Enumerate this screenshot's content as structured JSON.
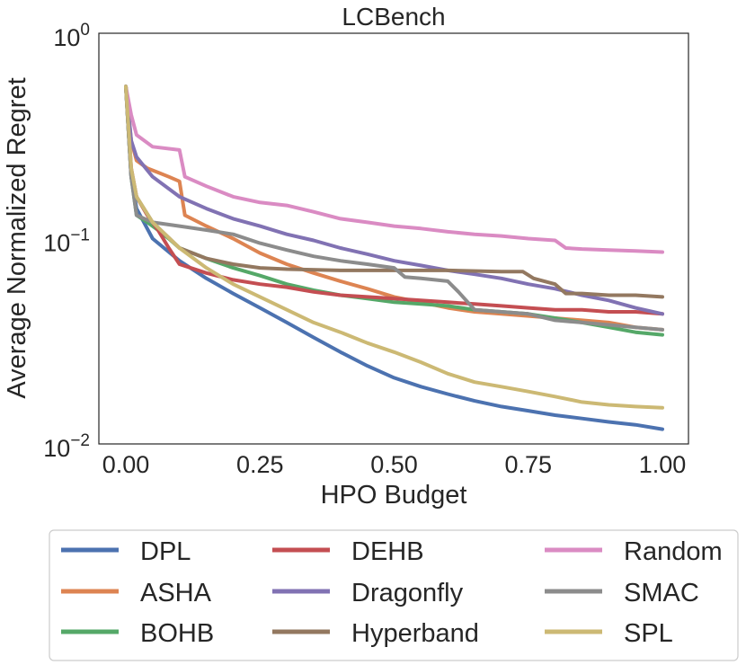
{
  "chart_data": {
    "type": "line",
    "title": "LCBench",
    "xlabel": "HPO Budget",
    "ylabel": "Average Normalized Regret",
    "xlim": [
      0,
      1
    ],
    "ylim": [
      0.01,
      1
    ],
    "yscale": "log",
    "grid": false,
    "legend_position": "below",
    "x_ticks": [
      {
        "value": 0,
        "label": "0.00"
      },
      {
        "value": 0.25,
        "label": "0.25"
      },
      {
        "value": 0.5,
        "label": "0.50"
      },
      {
        "value": 0.75,
        "label": "0.75"
      },
      {
        "value": 1,
        "label": "1.00"
      }
    ],
    "y_ticks": [
      {
        "value": 1,
        "base": "10",
        "exp": "0"
      },
      {
        "value": 0.1,
        "base": "10",
        "exp": "−1"
      },
      {
        "value": 0.01,
        "base": "10",
        "exp": "−2"
      }
    ],
    "series": [
      {
        "name": "DPL",
        "color": "#4c72b0",
        "x": [
          0,
          0.01,
          0.02,
          0.05,
          0.1,
          0.15,
          0.2,
          0.25,
          0.3,
          0.35,
          0.4,
          0.45,
          0.5,
          0.55,
          0.6,
          0.65,
          0.7,
          0.75,
          0.8,
          0.85,
          0.9,
          0.95,
          1.0
        ],
        "values": [
          0.55,
          0.2,
          0.14,
          0.1,
          0.078,
          0.064,
          0.054,
          0.046,
          0.039,
          0.033,
          0.028,
          0.024,
          0.021,
          0.019,
          0.0175,
          0.0162,
          0.0152,
          0.0145,
          0.0138,
          0.0133,
          0.0128,
          0.0124,
          0.0118
        ]
      },
      {
        "name": "ASHA",
        "color": "#dd8452",
        "x": [
          0,
          0.01,
          0.02,
          0.04,
          0.06,
          0.08,
          0.1,
          0.11,
          0.15,
          0.2,
          0.25,
          0.3,
          0.35,
          0.4,
          0.45,
          0.5,
          0.55,
          0.6,
          0.65,
          0.7,
          0.75,
          0.8,
          0.85,
          0.9,
          0.95,
          1.0
        ],
        "values": [
          0.55,
          0.3,
          0.24,
          0.22,
          0.21,
          0.2,
          0.19,
          0.13,
          0.115,
          0.1,
          0.085,
          0.075,
          0.068,
          0.062,
          0.057,
          0.052,
          0.049,
          0.046,
          0.044,
          0.043,
          0.042,
          0.041,
          0.04,
          0.039,
          0.037,
          0.036
        ]
      },
      {
        "name": "BOHB",
        "color": "#55a868",
        "x": [
          0,
          0.01,
          0.02,
          0.04,
          0.06,
          0.08,
          0.1,
          0.15,
          0.2,
          0.25,
          0.3,
          0.35,
          0.4,
          0.45,
          0.5,
          0.55,
          0.6,
          0.65,
          0.7,
          0.75,
          0.8,
          0.85,
          0.9,
          0.95,
          1.0
        ],
        "values": [
          0.55,
          0.2,
          0.13,
          0.12,
          0.11,
          0.1,
          0.09,
          0.08,
          0.072,
          0.066,
          0.06,
          0.056,
          0.053,
          0.051,
          0.049,
          0.048,
          0.047,
          0.045,
          0.044,
          0.043,
          0.041,
          0.039,
          0.037,
          0.035,
          0.034
        ]
      },
      {
        "name": "DEHB",
        "color": "#c44e52",
        "x": [
          0,
          0.01,
          0.02,
          0.04,
          0.06,
          0.08,
          0.1,
          0.15,
          0.2,
          0.25,
          0.3,
          0.35,
          0.4,
          0.45,
          0.5,
          0.55,
          0.6,
          0.65,
          0.7,
          0.75,
          0.8,
          0.85,
          0.9,
          0.95,
          1.0
        ],
        "values": [
          0.55,
          0.22,
          0.16,
          0.13,
          0.11,
          0.09,
          0.075,
          0.068,
          0.063,
          0.06,
          0.058,
          0.055,
          0.053,
          0.052,
          0.051,
          0.05,
          0.049,
          0.048,
          0.047,
          0.046,
          0.045,
          0.045,
          0.044,
          0.044,
          0.043
        ]
      },
      {
        "name": "Dragonfly",
        "color": "#8172b3",
        "x": [
          0,
          0.01,
          0.02,
          0.05,
          0.1,
          0.15,
          0.2,
          0.25,
          0.3,
          0.35,
          0.4,
          0.45,
          0.5,
          0.55,
          0.6,
          0.65,
          0.7,
          0.75,
          0.8,
          0.85,
          0.9,
          0.95,
          1.0
        ],
        "values": [
          0.55,
          0.3,
          0.25,
          0.2,
          0.16,
          0.14,
          0.125,
          0.115,
          0.105,
          0.098,
          0.09,
          0.084,
          0.078,
          0.074,
          0.07,
          0.067,
          0.064,
          0.06,
          0.057,
          0.053,
          0.05,
          0.046,
          0.043
        ]
      },
      {
        "name": "Hyperband",
        "color": "#937860",
        "x": [
          0,
          0.01,
          0.02,
          0.05,
          0.1,
          0.15,
          0.2,
          0.25,
          0.3,
          0.4,
          0.5,
          0.6,
          0.7,
          0.74,
          0.76,
          0.8,
          0.82,
          0.85,
          0.9,
          0.95,
          1.0
        ],
        "values": [
          0.55,
          0.2,
          0.16,
          0.12,
          0.09,
          0.08,
          0.075,
          0.072,
          0.071,
          0.07,
          0.07,
          0.07,
          0.069,
          0.069,
          0.064,
          0.06,
          0.054,
          0.054,
          0.053,
          0.053,
          0.052
        ]
      },
      {
        "name": "Random",
        "color": "#da8bc3",
        "x": [
          0,
          0.01,
          0.02,
          0.05,
          0.1,
          0.11,
          0.15,
          0.2,
          0.25,
          0.3,
          0.35,
          0.4,
          0.45,
          0.5,
          0.55,
          0.6,
          0.65,
          0.7,
          0.75,
          0.8,
          0.82,
          0.85,
          0.9,
          0.95,
          1.0
        ],
        "values": [
          0.55,
          0.4,
          0.32,
          0.28,
          0.27,
          0.2,
          0.18,
          0.16,
          0.15,
          0.145,
          0.135,
          0.125,
          0.12,
          0.115,
          0.112,
          0.108,
          0.105,
          0.103,
          0.1,
          0.098,
          0.09,
          0.089,
          0.088,
          0.087,
          0.086
        ]
      },
      {
        "name": "SMAC",
        "color": "#8c8c8c",
        "x": [
          0,
          0.01,
          0.02,
          0.05,
          0.1,
          0.15,
          0.2,
          0.25,
          0.3,
          0.35,
          0.4,
          0.45,
          0.5,
          0.52,
          0.55,
          0.6,
          0.62,
          0.65,
          0.7,
          0.75,
          0.8,
          0.85,
          0.9,
          0.95,
          1.0
        ],
        "values": [
          0.55,
          0.2,
          0.13,
          0.12,
          0.115,
          0.11,
          0.105,
          0.095,
          0.088,
          0.082,
          0.078,
          0.075,
          0.072,
          0.065,
          0.064,
          0.062,
          0.055,
          0.045,
          0.044,
          0.043,
          0.04,
          0.039,
          0.038,
          0.037,
          0.036
        ]
      },
      {
        "name": "SPL",
        "color": "#ccb974",
        "x": [
          0,
          0.01,
          0.02,
          0.05,
          0.1,
          0.15,
          0.2,
          0.25,
          0.3,
          0.35,
          0.4,
          0.45,
          0.5,
          0.55,
          0.6,
          0.65,
          0.7,
          0.75,
          0.8,
          0.85,
          0.9,
          0.95,
          1.0
        ],
        "values": [
          0.55,
          0.22,
          0.16,
          0.12,
          0.09,
          0.072,
          0.06,
          0.052,
          0.045,
          0.039,
          0.035,
          0.031,
          0.028,
          0.025,
          0.022,
          0.02,
          0.019,
          0.018,
          0.017,
          0.016,
          0.0155,
          0.0152,
          0.015
        ]
      }
    ]
  }
}
